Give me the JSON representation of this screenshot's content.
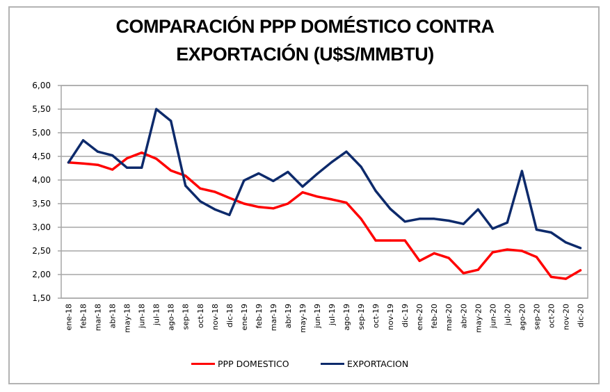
{
  "chart_data": {
    "type": "line",
    "title": "COMPARACIÓN PPP DOMÉSTICO CONTRA EXPORTACIÓN (U$S/MMBTU)",
    "title_lines": [
      "COMPARACIÓN PPP DOMÉSTICO CONTRA",
      "EXPORTACIÓN (U$S/MMBTU)"
    ],
    "xlabel": "",
    "ylabel": "",
    "ylim": [
      1.5,
      6.0
    ],
    "yticks": [
      1.5,
      2.0,
      2.5,
      3.0,
      3.5,
      4.0,
      4.5,
      5.0,
      5.5,
      6.0
    ],
    "ytick_labels": [
      "1,50",
      "2,00",
      "2,50",
      "3,00",
      "3,50",
      "4,00",
      "4,50",
      "5,00",
      "5,50",
      "6,00"
    ],
    "grid": true,
    "legend_position": "bottom",
    "categories": [
      "ene-18",
      "feb-18",
      "mar-18",
      "abr-18",
      "may-18",
      "jun-18",
      "jul-18",
      "ago-18",
      "sep-18",
      "oct-18",
      "nov-18",
      "dic-18",
      "ene-19",
      "feb-19",
      "mar-19",
      "abr-19",
      "may-19",
      "jun-19",
      "jul-19",
      "ago-19",
      "sep-19",
      "oct-19",
      "nov-19",
      "dic-19",
      "ene-20",
      "feb-20",
      "mar-20",
      "abr-20",
      "may-20",
      "jun-20",
      "jul-20",
      "ago-20",
      "sep-20",
      "oct-20",
      "nov-20",
      "dic-20"
    ],
    "series": [
      {
        "name": "PPP DOMESTICO",
        "color": "#ff0000",
        "values": [
          4.37,
          4.35,
          4.32,
          4.22,
          4.46,
          4.58,
          4.45,
          4.2,
          4.09,
          3.82,
          3.75,
          3.62,
          3.5,
          3.43,
          3.4,
          3.5,
          3.74,
          3.65,
          3.59,
          3.52,
          3.18,
          2.72,
          2.72,
          2.72,
          2.29,
          2.45,
          2.35,
          2.03,
          2.1,
          2.47,
          2.53,
          2.5,
          2.37,
          1.95,
          1.91,
          2.09
        ]
      },
      {
        "name": "EXPORTACION",
        "color": "#0d2a6b",
        "values": [
          4.37,
          4.84,
          4.6,
          4.52,
          4.26,
          4.26,
          5.5,
          5.25,
          3.88,
          3.55,
          3.38,
          3.26,
          3.99,
          4.14,
          3.98,
          4.17,
          3.86,
          4.13,
          4.38,
          4.6,
          4.28,
          3.77,
          3.39,
          3.12,
          3.18,
          3.18,
          3.14,
          3.07,
          3.38,
          2.97,
          3.1,
          4.19,
          2.95,
          2.89,
          2.68,
          2.56
        ]
      }
    ]
  }
}
